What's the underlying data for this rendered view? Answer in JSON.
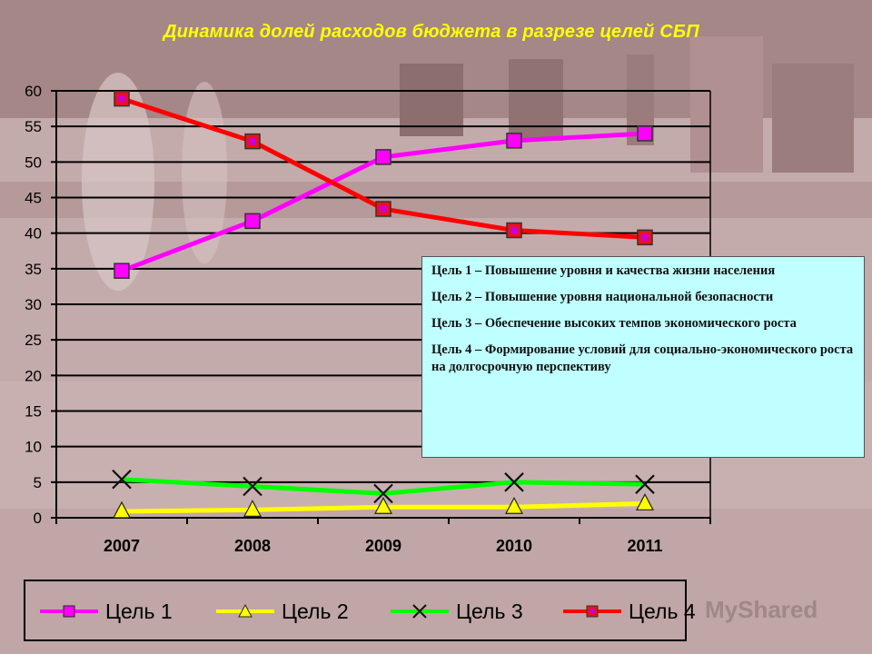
{
  "title": "Динамика долей расходов бюджета в разрезе целей СБП",
  "goals_box": [
    "Цель 1 – Повышение уровня и качества жизни населения",
    "Цель 2 – Повышение уровня национальной безопасности",
    "Цель 3 – Обеспечение высоких темпов экономического роста",
    "Цель 4 – Формирование условий для социально-экономического роста на долгосрочную перспективу"
  ],
  "watermark": "MyShared",
  "chart_data": {
    "type": "line",
    "title": "Динамика долей расходов бюджета в разрезе целей СБП",
    "xlabel": "",
    "ylabel": "",
    "x": [
      "2007",
      "2008",
      "2009",
      "2010",
      "2011"
    ],
    "ylim": [
      0,
      60
    ],
    "yticks": [
      0,
      5,
      10,
      15,
      20,
      25,
      30,
      35,
      40,
      45,
      50,
      55,
      60
    ],
    "grid": "horizontal",
    "legend_position": "bottom",
    "series": [
      {
        "name": "Цель 1",
        "color": "#ff00ff",
        "marker": "square-magenta",
        "values": [
          34.7,
          41.7,
          50.7,
          53.0,
          54.0
        ]
      },
      {
        "name": "Цель 2",
        "color": "#ffff00",
        "marker": "triangle",
        "values": [
          0.9,
          1.1,
          1.5,
          1.5,
          2.0
        ]
      },
      {
        "name": "Цель 3",
        "color": "#00ff00",
        "marker": "x",
        "values": [
          5.4,
          4.4,
          3.4,
          5.0,
          4.7
        ]
      },
      {
        "name": "Цель 4",
        "color": "#ff0000",
        "marker": "square-red",
        "values": [
          58.9,
          52.9,
          43.4,
          40.4,
          39.4
        ]
      }
    ]
  }
}
